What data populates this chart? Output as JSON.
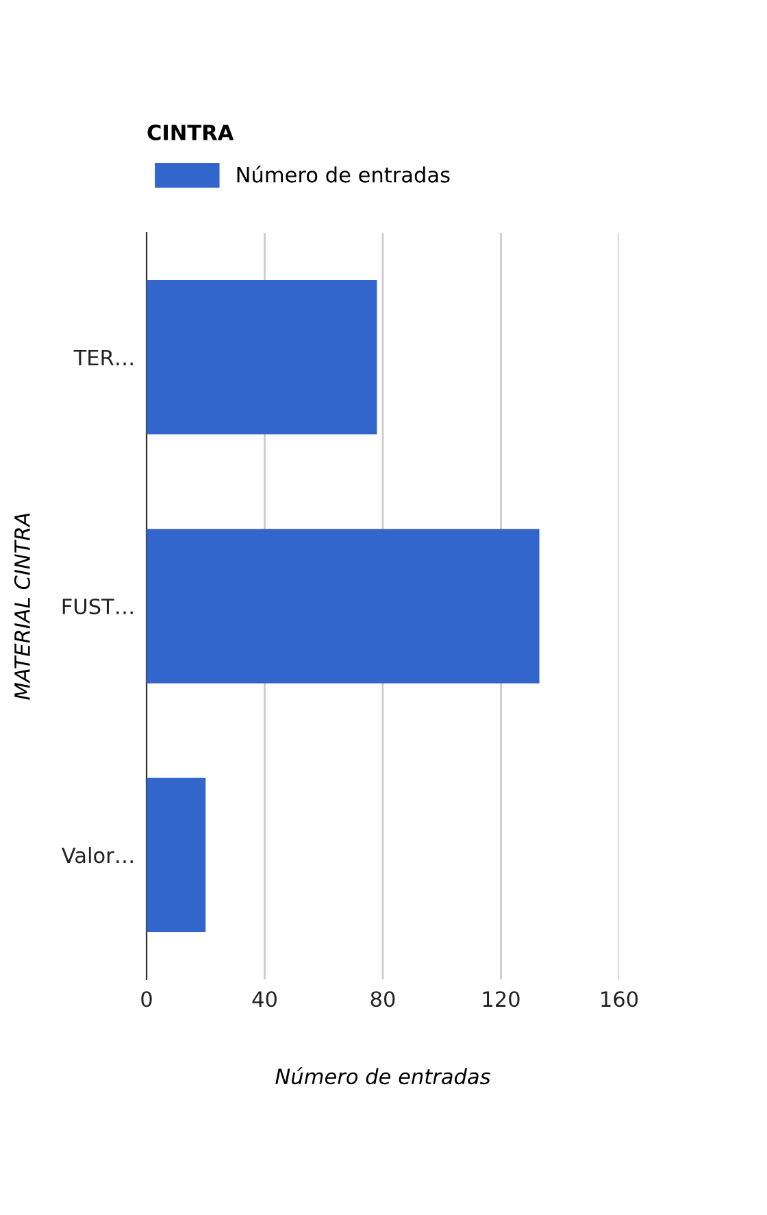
{
  "chart_data": {
    "type": "bar",
    "orientation": "horizontal",
    "title": "CINTRA",
    "xlabel": "Número de entradas",
    "ylabel": "MATERIAL CINTRA",
    "categories": [
      "TER…",
      "FUST…",
      "Valor…"
    ],
    "series": [
      {
        "name": "Número de entradas",
        "color": "#3366cc",
        "values": [
          78,
          133,
          20
        ]
      }
    ],
    "xlim": [
      0,
      160
    ],
    "xticks": [
      0,
      40,
      80,
      120,
      160
    ],
    "grid": "x",
    "legend": "top left"
  }
}
